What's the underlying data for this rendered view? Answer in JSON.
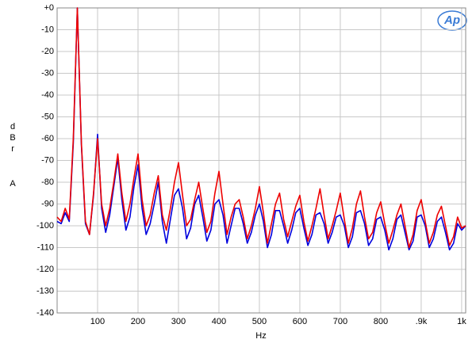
{
  "chart_data": {
    "type": "line",
    "logo": "Ap",
    "y_label": "dBr",
    "y_label_weighting": "A",
    "x_label": "Hz",
    "xlim": [
      0,
      1010
    ],
    "ylim": [
      -140,
      0
    ],
    "xticks": [
      100,
      200,
      300,
      400,
      500,
      600,
      700,
      800,
      {
        "value": 900,
        "label": ".9k"
      },
      {
        "value": 1000,
        "label": "1k"
      }
    ],
    "yticks": [
      {
        "value": 0,
        "label": "+0"
      },
      -10,
      -20,
      -30,
      -40,
      -50,
      -60,
      -70,
      -80,
      -90,
      -100,
      -110,
      -120,
      -130,
      -140
    ],
    "grid": true,
    "x": [
      0,
      10,
      20,
      30,
      40,
      50,
      60,
      70,
      80,
      90,
      100,
      110,
      120,
      130,
      140,
      150,
      160,
      170,
      180,
      190,
      200,
      210,
      220,
      230,
      240,
      250,
      260,
      270,
      280,
      290,
      300,
      310,
      320,
      330,
      340,
      350,
      360,
      370,
      380,
      390,
      400,
      410,
      420,
      430,
      440,
      450,
      460,
      470,
      480,
      490,
      500,
      510,
      520,
      530,
      540,
      550,
      560,
      570,
      580,
      590,
      600,
      610,
      620,
      630,
      640,
      650,
      660,
      670,
      680,
      690,
      700,
      710,
      720,
      730,
      740,
      750,
      760,
      770,
      780,
      790,
      800,
      810,
      820,
      830,
      840,
      850,
      860,
      870,
      880,
      890,
      900,
      910,
      920,
      930,
      940,
      950,
      960,
      970,
      980,
      990,
      1000,
      1010
    ],
    "series": [
      {
        "color": "#0000dd",
        "values": [
          -98,
          -99,
          -94,
          -98,
          -62,
          0,
          -63,
          -99,
          -104,
          -86,
          -58,
          -92,
          -103,
          -95,
          -82,
          -69,
          -88,
          -102,
          -96,
          -82,
          -72,
          -92,
          -104,
          -99,
          -90,
          -80,
          -98,
          -108,
          -97,
          -86,
          -83,
          -92,
          -106,
          -101,
          -90,
          -86,
          -96,
          -107,
          -102,
          -90,
          -88,
          -95,
          -108,
          -100,
          -92,
          -92,
          -99,
          -108,
          -103,
          -95,
          -90,
          -98,
          -110,
          -104,
          -93,
          -93,
          -100,
          -108,
          -102,
          -94,
          -92,
          -101,
          -109,
          -104,
          -95,
          -94,
          -99,
          -108,
          -103,
          -96,
          -95,
          -100,
          -110,
          -105,
          -94,
          -93,
          -99,
          -109,
          -106,
          -97,
          -96,
          -102,
          -111,
          -106,
          -97,
          -95,
          -103,
          -111,
          -107,
          -96,
          -95,
          -100,
          -110,
          -106,
          -98,
          -96,
          -103,
          -111,
          -108,
          -99,
          -102,
          -100
        ]
      },
      {
        "color": "#ee0000",
        "values": [
          -96,
          -98,
          -92,
          -97,
          -60,
          0,
          -62,
          -98,
          -104,
          -85,
          -60,
          -90,
          -100,
          -92,
          -80,
          -67,
          -85,
          -98,
          -90,
          -78,
          -67,
          -88,
          -100,
          -95,
          -85,
          -77,
          -95,
          -102,
          -92,
          -80,
          -71,
          -86,
          -100,
          -97,
          -88,
          -80,
          -92,
          -103,
          -98,
          -85,
          -75,
          -90,
          -104,
          -96,
          -90,
          -88,
          -96,
          -106,
          -100,
          -92,
          -82,
          -94,
          -108,
          -99,
          -90,
          -85,
          -97,
          -105,
          -98,
          -91,
          -86,
          -98,
          -107,
          -100,
          -92,
          -83,
          -95,
          -106,
          -100,
          -93,
          -85,
          -97,
          -108,
          -101,
          -90,
          -84,
          -96,
          -106,
          -103,
          -94,
          -89,
          -99,
          -108,
          -102,
          -95,
          -90,
          -100,
          -110,
          -104,
          -93,
          -88,
          -98,
          -108,
          -103,
          -95,
          -91,
          -100,
          -109,
          -105,
          -96,
          -101,
          -100
        ]
      }
    ]
  }
}
